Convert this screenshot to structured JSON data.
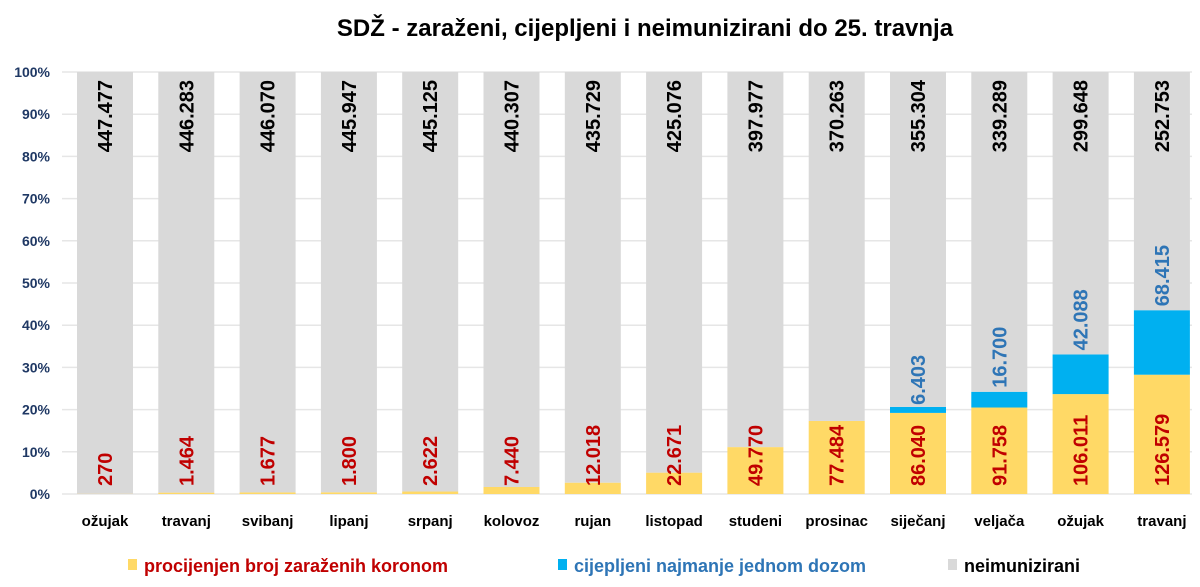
{
  "chart_data": {
    "type": "bar",
    "stacked": "percent",
    "title": "SDŽ - zaraženi, cijepljeni i neimunizirani do 25. travnja",
    "xlabel": "",
    "ylabel": "",
    "ylim": [
      0,
      100
    ],
    "yticks": [
      "0%",
      "10%",
      "20%",
      "30%",
      "40%",
      "50%",
      "60%",
      "70%",
      "80%",
      "90%",
      "100%"
    ],
    "grid": true,
    "legend_position": "bottom",
    "categories": [
      "ožujak",
      "travanj",
      "svibanj",
      "lipanj",
      "srpanj",
      "kolovoz",
      "rujan",
      "listopad",
      "studeni",
      "prosinac",
      "siječanj",
      "veljača",
      "ožujak",
      "travanj"
    ],
    "series": [
      {
        "name": "procijenjen broj zaraženih koronom",
        "color": "#FFD966",
        "label_color": "#C00000",
        "values": [
          270,
          1464,
          1677,
          1800,
          2622,
          7440,
          12018,
          22671,
          49770,
          77484,
          86040,
          91758,
          106011,
          126579
        ],
        "labels": [
          "270",
          "1.464",
          "1.677",
          "1.800",
          "2.622",
          "7.440",
          "12.018",
          "22.671",
          "49.770",
          "77.484",
          "86.040",
          "91.758",
          "106.011",
          "126.579"
        ]
      },
      {
        "name": "cijepljeni najmanje jednom dozom",
        "color": "#00B0F0",
        "label_color": "#2E75B6",
        "values": [
          0,
          0,
          0,
          0,
          0,
          0,
          0,
          0,
          0,
          0,
          6403,
          16700,
          42088,
          68415
        ],
        "labels": [
          "",
          "",
          "",
          "",
          "",
          "",
          "",
          "",
          "",
          "",
          "6.403",
          "16.700",
          "42.088",
          "68.415"
        ]
      },
      {
        "name": "neimunizirani",
        "color": "#D9D9D9",
        "label_color": "#000000",
        "values": [
          447477,
          446283,
          446070,
          445947,
          445125,
          440307,
          435729,
          425076,
          397977,
          370263,
          355304,
          339289,
          299648,
          252753
        ],
        "labels": [
          "447.477",
          "446.283",
          "446.070",
          "445.947",
          "445.125",
          "440.307",
          "435.729",
          "425.076",
          "397.977",
          "370.263",
          "355.304",
          "339.289",
          "299.648",
          "252.753"
        ]
      }
    ]
  }
}
